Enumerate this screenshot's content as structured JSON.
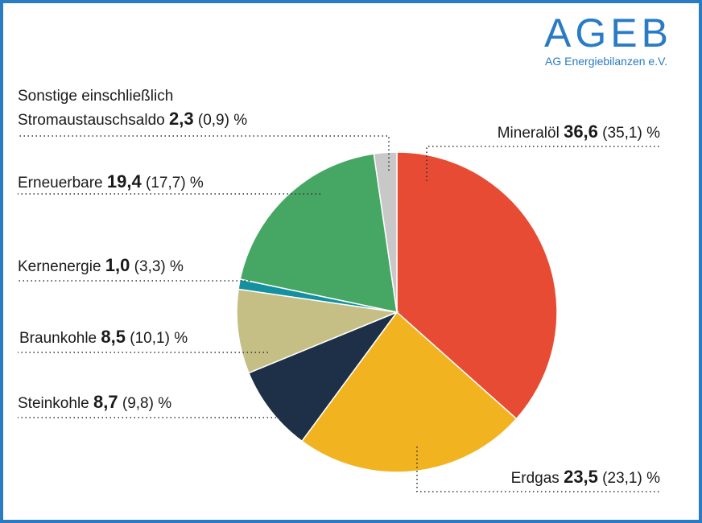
{
  "logo": {
    "text": "AGEB",
    "subtitle": "AG Energiebilanzen e.V.",
    "color": "#2a7bc4"
  },
  "chart_data": {
    "type": "pie",
    "unit": "%",
    "start": "top, clockwise",
    "slices": [
      {
        "label": "Mineralöl",
        "value": 36.6,
        "previous": "35,1",
        "value_text": "36,6",
        "color": "#e84b33"
      },
      {
        "label": "Erdgas",
        "value": 23.5,
        "previous": "23,1",
        "value_text": "23,5",
        "color": "#f2b321"
      },
      {
        "label": "Steinkohle",
        "value": 8.7,
        "previous": "9,8",
        "value_text": "8,7",
        "color": "#1d3047"
      },
      {
        "label": "Braunkohle",
        "value": 8.5,
        "previous": "10,1",
        "value_text": "8,5",
        "color": "#c5bf85"
      },
      {
        "label": "Kernenergie",
        "value": 1.0,
        "previous": "3,3",
        "value_text": "1,0",
        "color": "#14909f"
      },
      {
        "label": "Erneuerbare",
        "value": 19.4,
        "previous": "17,7",
        "value_text": "19,4",
        "color": "#46a764"
      },
      {
        "label": "Sonstige einschließlich Stromaustauschsaldo",
        "label_line1": "Sonstige einschließlich",
        "label_line2": "Stromaustauschsaldo",
        "value": 2.3,
        "previous": "0,9",
        "value_text": "2,3",
        "color": "#c8c8c8"
      }
    ]
  }
}
